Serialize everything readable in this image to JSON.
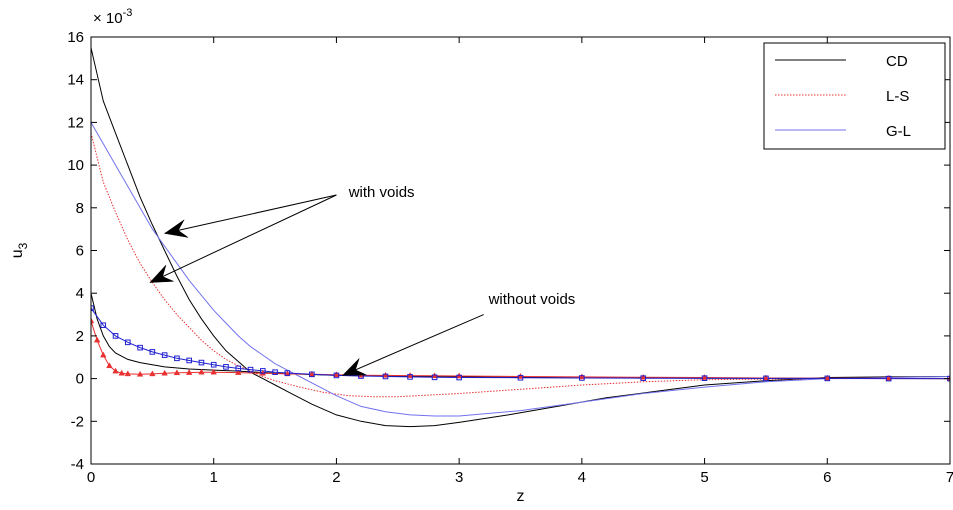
{
  "chart_data": {
    "type": "line",
    "title": "",
    "xlabel": "z",
    "ylabel_main": "u",
    "ylabel_sub": "3",
    "exponent_label": "× 10",
    "exponent_power": "-3",
    "xlim": [
      0,
      7
    ],
    "ylim": [
      -4,
      16
    ],
    "xticks": [
      0,
      1,
      2,
      3,
      4,
      5,
      6,
      7
    ],
    "yticks": [
      -4,
      -2,
      0,
      2,
      4,
      6,
      8,
      10,
      12,
      14,
      16
    ],
    "grid": false,
    "legend_placement": "top-right",
    "legend": [
      "CD",
      "L-S",
      "G-L"
    ],
    "series": [
      {
        "name": "CD",
        "group": "with voids",
        "color": "#000000",
        "dash": "",
        "marker": "none",
        "x": [
          0,
          0.1,
          0.2,
          0.3,
          0.4,
          0.5,
          0.6,
          0.7,
          0.8,
          0.9,
          1.0,
          1.1,
          1.2,
          1.3,
          1.4,
          1.5,
          1.6,
          1.8,
          2.0,
          2.2,
          2.4,
          2.6,
          2.8,
          3.0,
          3.4,
          3.8,
          4.2,
          4.6,
          5.0,
          5.5,
          6.0,
          6.5,
          7.0
        ],
        "y": [
          15.5,
          13.0,
          11.5,
          10.0,
          8.5,
          7.2,
          6.0,
          4.8,
          3.7,
          2.8,
          2.0,
          1.3,
          0.8,
          0.3,
          0.0,
          -0.3,
          -0.6,
          -1.2,
          -1.7,
          -2.0,
          -2.2,
          -2.25,
          -2.2,
          -2.05,
          -1.7,
          -1.3,
          -0.9,
          -0.6,
          -0.3,
          -0.1,
          0.05,
          0.08,
          0.1
        ]
      },
      {
        "name": "L-S",
        "group": "with voids",
        "color": "#e83030",
        "dash": "1.5,1.5",
        "marker": "none",
        "x": [
          0,
          0.1,
          0.2,
          0.3,
          0.4,
          0.5,
          0.6,
          0.7,
          0.8,
          0.9,
          1.0,
          1.1,
          1.2,
          1.3,
          1.4,
          1.5,
          1.7,
          1.9,
          2.1,
          2.3,
          2.5,
          3.0,
          3.5,
          4.0,
          4.5,
          5.0,
          6.0,
          7.0
        ],
        "y": [
          11.5,
          9.2,
          7.8,
          6.5,
          5.4,
          4.5,
          3.7,
          3.0,
          2.4,
          1.8,
          1.3,
          0.9,
          0.6,
          0.35,
          0.1,
          -0.1,
          -0.4,
          -0.65,
          -0.8,
          -0.85,
          -0.85,
          -0.7,
          -0.5,
          -0.3,
          -0.15,
          -0.05,
          0.0,
          0.0
        ]
      },
      {
        "name": "G-L",
        "group": "with voids",
        "color": "#7272ee",
        "dash": "",
        "marker": "none",
        "x": [
          0,
          0.1,
          0.2,
          0.3,
          0.4,
          0.5,
          0.6,
          0.7,
          0.8,
          0.9,
          1.0,
          1.1,
          1.2,
          1.3,
          1.4,
          1.5,
          1.6,
          1.7,
          1.8,
          2.0,
          2.2,
          2.4,
          2.6,
          2.8,
          3.0,
          3.5,
          4.0,
          4.5,
          5.0,
          5.5,
          6.0,
          6.5,
          7.0
        ],
        "y": [
          12.0,
          11.0,
          10.0,
          9.0,
          8.0,
          7.0,
          6.2,
          5.4,
          4.6,
          3.9,
          3.2,
          2.6,
          2.0,
          1.5,
          1.1,
          0.7,
          0.4,
          0.1,
          -0.2,
          -0.8,
          -1.3,
          -1.55,
          -1.7,
          -1.75,
          -1.75,
          -1.5,
          -1.1,
          -0.7,
          -0.4,
          -0.15,
          0.0,
          0.05,
          0.1
        ]
      },
      {
        "name": "CD",
        "group": "without voids",
        "color": "#000000",
        "dash": "",
        "marker": "none",
        "x": [
          0,
          0.05,
          0.1,
          0.15,
          0.2,
          0.3,
          0.4,
          0.5,
          0.6,
          0.8,
          1.0,
          1.2,
          1.5,
          2.0,
          3.0,
          4.0,
          5.0,
          6.0,
          7.0
        ],
        "y": [
          4.0,
          2.8,
          2.0,
          1.5,
          1.2,
          0.9,
          0.75,
          0.65,
          0.55,
          0.45,
          0.4,
          0.35,
          0.25,
          0.15,
          0.08,
          0.04,
          0.02,
          0.01,
          0.0
        ]
      },
      {
        "name": "L-S",
        "group": "without voids",
        "color": "#e83030",
        "dash": "",
        "marker": "triangle",
        "x": [
          0,
          0.05,
          0.1,
          0.15,
          0.2,
          0.25,
          0.3,
          0.4,
          0.5,
          0.6,
          0.7,
          0.8,
          0.9,
          1.0,
          1.2,
          1.4,
          1.6,
          1.8,
          2.0,
          2.2,
          2.4,
          2.6,
          2.8,
          3.0,
          3.5,
          4.0,
          4.5,
          5.0,
          5.5,
          6.0,
          6.5,
          7.0
        ],
        "y": [
          2.7,
          1.8,
          1.1,
          0.6,
          0.35,
          0.25,
          0.22,
          0.2,
          0.22,
          0.25,
          0.27,
          0.28,
          0.3,
          0.3,
          0.28,
          0.25,
          0.22,
          0.2,
          0.18,
          0.16,
          0.15,
          0.14,
          0.13,
          0.12,
          0.1,
          0.08,
          0.06,
          0.05,
          0.03,
          0.02,
          0.01,
          0.0
        ]
      },
      {
        "name": "G-L",
        "group": "without voids",
        "color": "#2020d0",
        "dash": "",
        "marker": "square",
        "x": [
          0,
          0.1,
          0.2,
          0.3,
          0.4,
          0.5,
          0.6,
          0.7,
          0.8,
          0.9,
          1.0,
          1.1,
          1.2,
          1.3,
          1.4,
          1.5,
          1.6,
          1.8,
          2.0,
          2.2,
          2.4,
          2.6,
          2.8,
          3.0,
          3.5,
          4.0,
          4.5,
          5.0,
          5.5,
          6.0,
          6.5,
          7.0
        ],
        "y": [
          3.3,
          2.5,
          2.0,
          1.7,
          1.45,
          1.25,
          1.1,
          0.95,
          0.85,
          0.75,
          0.65,
          0.55,
          0.48,
          0.42,
          0.36,
          0.3,
          0.26,
          0.2,
          0.15,
          0.12,
          0.1,
          0.08,
          0.06,
          0.05,
          0.04,
          0.03,
          0.02,
          0.02,
          0.01,
          0.01,
          0.0,
          0.0
        ]
      }
    ],
    "annotations": [
      {
        "text": "with voids",
        "text_at": [
          2.1,
          8.5
        ],
        "arrows": [
          {
            "from": [
              2.0,
              8.6
            ],
            "to": [
              0.6,
              6.8
            ]
          },
          {
            "from": [
              2.0,
              8.6
            ],
            "to": [
              0.48,
              4.5
            ]
          }
        ]
      },
      {
        "text": "without voids",
        "text_at": [
          3.24,
          3.5
        ],
        "arrows": [
          {
            "from": [
              3.2,
              3.0
            ],
            "to": [
              2.05,
              0.15
            ]
          }
        ]
      }
    ]
  }
}
